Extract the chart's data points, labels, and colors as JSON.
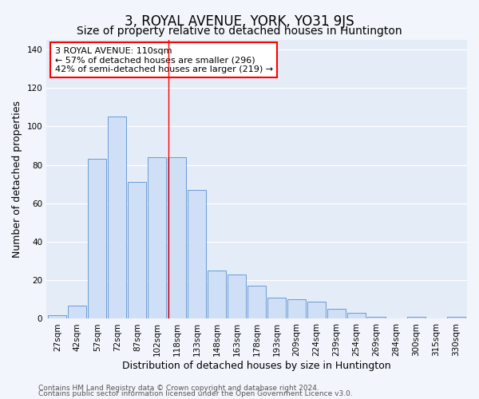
{
  "title": "3, ROYAL AVENUE, YORK, YO31 9JS",
  "subtitle": "Size of property relative to detached houses in Huntington",
  "xlabel": "Distribution of detached houses by size in Huntington",
  "ylabel": "Number of detached properties",
  "categories": [
    "27sqm",
    "42sqm",
    "57sqm",
    "72sqm",
    "87sqm",
    "102sqm",
    "118sqm",
    "133sqm",
    "148sqm",
    "163sqm",
    "178sqm",
    "193sqm",
    "209sqm",
    "224sqm",
    "239sqm",
    "254sqm",
    "269sqm",
    "284sqm",
    "300sqm",
    "315sqm",
    "330sqm"
  ],
  "values": [
    2,
    7,
    83,
    105,
    71,
    84,
    84,
    67,
    25,
    23,
    17,
    11,
    10,
    9,
    5,
    3,
    1,
    0,
    1,
    0,
    1
  ],
  "bar_color": "#cfdff5",
  "bar_edge_color": "#5a8fd0",
  "red_line_x": 5.575,
  "ylim": [
    0,
    145
  ],
  "yticks": [
    0,
    20,
    40,
    60,
    80,
    100,
    120,
    140
  ],
  "annotation_text": "3 ROYAL AVENUE: 110sqm\n← 57% of detached houses are smaller (296)\n42% of semi-detached houses are larger (219) →",
  "footer1": "Contains HM Land Registry data © Crown copyright and database right 2024.",
  "footer2": "Contains public sector information licensed under the Open Government Licence v3.0.",
  "background_color": "#f2f5fb",
  "plot_bg_color": "#e4ecf7",
  "grid_color": "#ffffff",
  "title_fontsize": 12,
  "subtitle_fontsize": 10,
  "axis_label_fontsize": 9,
  "tick_fontsize": 7.5,
  "footer_fontsize": 6.5,
  "annotation_fontsize": 8
}
